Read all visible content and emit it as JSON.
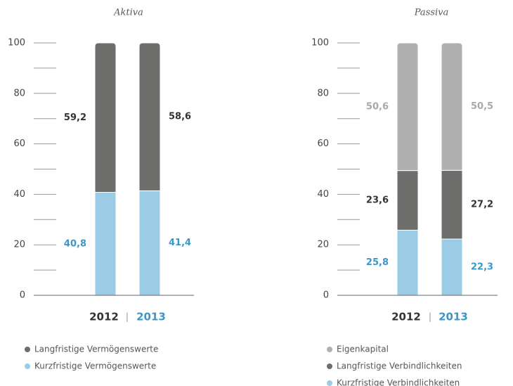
{
  "chart_data": [
    {
      "type": "stacked_bar",
      "title": "Aktiva",
      "categories": [
        "2012",
        "2013"
      ],
      "category_colors": [
        "#333333",
        "#3a97c9"
      ],
      "series": [
        {
          "name": "Langfristige Vermögenswerte",
          "color": "#6d6d6b",
          "label_color": "#333333",
          "values": [
            59.2,
            58.6
          ],
          "value_labels": [
            "59,2",
            "58,6"
          ]
        },
        {
          "name": "Kurzfristige Vermögenswerte",
          "color": "#9ccbe6",
          "label_color": "#3a97c9",
          "values": [
            40.8,
            41.4
          ],
          "value_labels": [
            "40,8",
            "41,4"
          ]
        }
      ],
      "ylim": [
        0,
        100
      ],
      "yticks": [
        0,
        20,
        40,
        60,
        80,
        100
      ],
      "minor_yticks": [
        10,
        30,
        50,
        70,
        90
      ]
    },
    {
      "type": "stacked_bar",
      "title": "Passiva",
      "categories": [
        "2012",
        "2013"
      ],
      "category_colors": [
        "#333333",
        "#3a97c9"
      ],
      "series": [
        {
          "name": "Eigenkapital",
          "color": "#b0b0b0",
          "label_color": "#a8a8a8",
          "values": [
            50.6,
            50.5
          ],
          "value_labels": [
            "50,6",
            "50,5"
          ]
        },
        {
          "name": "Langfristige Verbindlichkeiten",
          "color": "#6d6d6b",
          "label_color": "#333333",
          "values": [
            23.6,
            27.2
          ],
          "value_labels": [
            "23,6",
            "27,2"
          ]
        },
        {
          "name": "Kurzfristige Verbindlichkeiten",
          "color": "#9ccbe6",
          "label_color": "#3a97c9",
          "values": [
            25.8,
            22.3
          ],
          "value_labels": [
            "25,8",
            "22,3"
          ]
        }
      ],
      "ylim": [
        0,
        100
      ],
      "yticks": [
        0,
        20,
        40,
        60,
        80,
        100
      ],
      "minor_yticks": [
        10,
        30,
        50,
        70,
        90
      ]
    }
  ]
}
